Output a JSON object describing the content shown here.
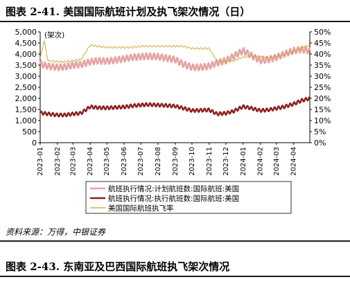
{
  "figure": {
    "title": "图表 2-41. 美国国际航班计划及执飞架次情况（日）",
    "source": "资料来源：万得，中银证券",
    "next_title": "图表 2-43. 东南亚及巴西国际航班执飞架次情况"
  },
  "chart_data": {
    "type": "line",
    "unit_label": "(架次)",
    "x_ticks": [
      "2023-01",
      "2023-02",
      "2023-03",
      "2023-04",
      "2023-05",
      "2023-06",
      "2023-07",
      "2023-08",
      "2023-09",
      "2023-10",
      "2023-11",
      "2023-12",
      "2024-01",
      "2024-02",
      "2024-03",
      "2024-04"
    ],
    "x_range": [
      "2023-01-01",
      "2024-04-30"
    ],
    "y_left": {
      "range": [
        0,
        5000
      ],
      "ticks": [
        "0",
        "500",
        "1,000",
        "1,500",
        "2,000",
        "2,500",
        "3,000",
        "3,500",
        "4,000",
        "4,500",
        "5,000"
      ]
    },
    "y_right": {
      "range": [
        0,
        50
      ],
      "ticks": [
        "0%",
        "5%",
        "10%",
        "15%",
        "20%",
        "25%",
        "30%",
        "35%",
        "40%",
        "45%",
        "50%"
      ]
    },
    "legend_position": "bottom",
    "series": [
      {
        "name": "航班执行情况:计划航班数:国际航班:美国",
        "axis": "left",
        "color": "#e6a3a3",
        "points": [
          [
            "2023-01-01",
            3550
          ],
          [
            "2023-01-15",
            3450
          ],
          [
            "2023-02-01",
            3400
          ],
          [
            "2023-02-15",
            3420
          ],
          [
            "2023-03-01",
            3500
          ],
          [
            "2023-03-15",
            3520
          ],
          [
            "2023-04-01",
            3650
          ],
          [
            "2023-04-15",
            3700
          ],
          [
            "2023-05-01",
            3680
          ],
          [
            "2023-05-15",
            3720
          ],
          [
            "2023-06-01",
            3780
          ],
          [
            "2023-06-15",
            3850
          ],
          [
            "2023-07-01",
            3880
          ],
          [
            "2023-07-15",
            3900
          ],
          [
            "2023-08-01",
            3880
          ],
          [
            "2023-08-15",
            3820
          ],
          [
            "2023-09-01",
            3750
          ],
          [
            "2023-09-15",
            3550
          ],
          [
            "2023-10-01",
            3400
          ],
          [
            "2023-10-15",
            3400
          ],
          [
            "2023-11-01",
            3450
          ],
          [
            "2023-11-15",
            3600
          ],
          [
            "2023-12-01",
            3700
          ],
          [
            "2023-12-15",
            3900
          ],
          [
            "2024-01-01",
            4150
          ],
          [
            "2024-01-15",
            3950
          ],
          [
            "2024-02-01",
            3700
          ],
          [
            "2024-02-15",
            3750
          ],
          [
            "2024-03-01",
            3850
          ],
          [
            "2024-03-15",
            4000
          ],
          [
            "2024-04-01",
            4150
          ],
          [
            "2024-04-15",
            4200
          ],
          [
            "2024-04-30",
            4150
          ]
        ]
      },
      {
        "name": "航班执行情况:执行航班数:国际航班:美国",
        "axis": "left",
        "color": "#8b1f1f",
        "points": [
          [
            "2023-01-01",
            1350
          ],
          [
            "2023-01-15",
            1300
          ],
          [
            "2023-02-01",
            1250
          ],
          [
            "2023-02-15",
            1250
          ],
          [
            "2023-03-01",
            1300
          ],
          [
            "2023-03-15",
            1330
          ],
          [
            "2023-04-01",
            1620
          ],
          [
            "2023-04-15",
            1580
          ],
          [
            "2023-05-01",
            1570
          ],
          [
            "2023-05-15",
            1590
          ],
          [
            "2023-06-01",
            1610
          ],
          [
            "2023-06-15",
            1660
          ],
          [
            "2023-07-01",
            1700
          ],
          [
            "2023-07-15",
            1720
          ],
          [
            "2023-08-01",
            1700
          ],
          [
            "2023-08-15",
            1680
          ],
          [
            "2023-09-01",
            1650
          ],
          [
            "2023-09-15",
            1560
          ],
          [
            "2023-10-01",
            1450
          ],
          [
            "2023-10-15",
            1460
          ],
          [
            "2023-11-01",
            1480
          ],
          [
            "2023-11-15",
            1300
          ],
          [
            "2023-12-01",
            1330
          ],
          [
            "2023-12-15",
            1420
          ],
          [
            "2024-01-01",
            1630
          ],
          [
            "2024-01-15",
            1560
          ],
          [
            "2024-02-01",
            1450
          ],
          [
            "2024-02-15",
            1480
          ],
          [
            "2024-03-01",
            1550
          ],
          [
            "2024-03-15",
            1620
          ],
          [
            "2024-04-01",
            1750
          ],
          [
            "2024-04-15",
            1900
          ],
          [
            "2024-04-30",
            2000
          ]
        ]
      },
      {
        "name": "美国国际航班执飞率",
        "axis": "right",
        "color": "#c8a21e",
        "points": [
          [
            "2023-01-01",
            38
          ],
          [
            "2023-01-08",
            46
          ],
          [
            "2023-01-15",
            37
          ],
          [
            "2023-02-01",
            36.5
          ],
          [
            "2023-02-15",
            36.5
          ],
          [
            "2023-03-01",
            37
          ],
          [
            "2023-03-15",
            37.5
          ],
          [
            "2023-04-01",
            44
          ],
          [
            "2023-04-15",
            43.5
          ],
          [
            "2023-05-01",
            43
          ],
          [
            "2023-05-15",
            43
          ],
          [
            "2023-06-01",
            43
          ],
          [
            "2023-06-15",
            43
          ],
          [
            "2023-07-01",
            43.5
          ],
          [
            "2023-07-15",
            43.5
          ],
          [
            "2023-08-01",
            43.5
          ],
          [
            "2023-08-15",
            43.5
          ],
          [
            "2023-09-01",
            43.5
          ],
          [
            "2023-09-15",
            43.5
          ],
          [
            "2023-10-01",
            42.5
          ],
          [
            "2023-10-15",
            42.5
          ],
          [
            "2023-11-01",
            42.5
          ],
          [
            "2023-11-15",
            37
          ],
          [
            "2023-12-01",
            36.5
          ],
          [
            "2023-12-15",
            37
          ],
          [
            "2024-01-01",
            38.5
          ],
          [
            "2024-01-15",
            39
          ],
          [
            "2024-02-01",
            39
          ],
          [
            "2024-02-15",
            38.5
          ],
          [
            "2024-03-01",
            39
          ],
          [
            "2024-03-15",
            39.5
          ],
          [
            "2024-04-01",
            41
          ],
          [
            "2024-04-15",
            43
          ],
          [
            "2024-04-30",
            44
          ]
        ]
      }
    ]
  }
}
